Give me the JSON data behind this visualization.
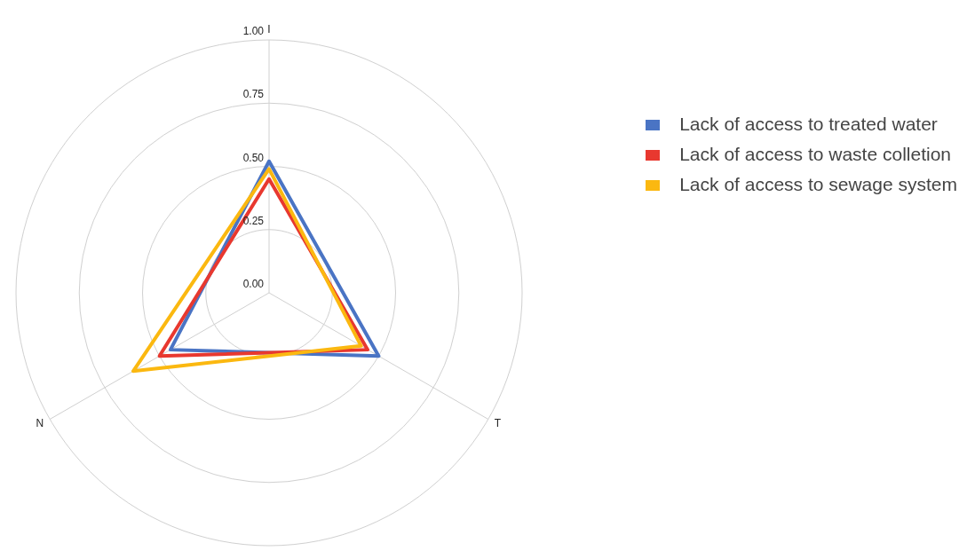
{
  "chart_data": {
    "type": "radar",
    "categories": [
      "I",
      "T",
      "N"
    ],
    "series": [
      {
        "name": "Lack of access to treated water",
        "color": "#4a74c4",
        "values": [
          0.52,
          0.5,
          0.45
        ]
      },
      {
        "name": "Lack of access to waste colletion",
        "color": "#e8382f",
        "values": [
          0.45,
          0.45,
          0.5
        ]
      },
      {
        "name": "Lack of access to sewage system",
        "color": "#fbb810",
        "values": [
          0.49,
          0.42,
          0.62
        ]
      }
    ],
    "ylim": [
      0,
      1
    ],
    "yticks": [
      {
        "value": 0,
        "label": "0.00"
      },
      {
        "value": 0.25,
        "label": "0.25"
      },
      {
        "value": 0.5,
        "label": "0.50"
      },
      {
        "value": 0.75,
        "label": "0.75"
      },
      {
        "value": 1,
        "label": "1.00"
      }
    ],
    "grid": true,
    "legend": "right",
    "marker": "none",
    "line_style": "solid"
  }
}
